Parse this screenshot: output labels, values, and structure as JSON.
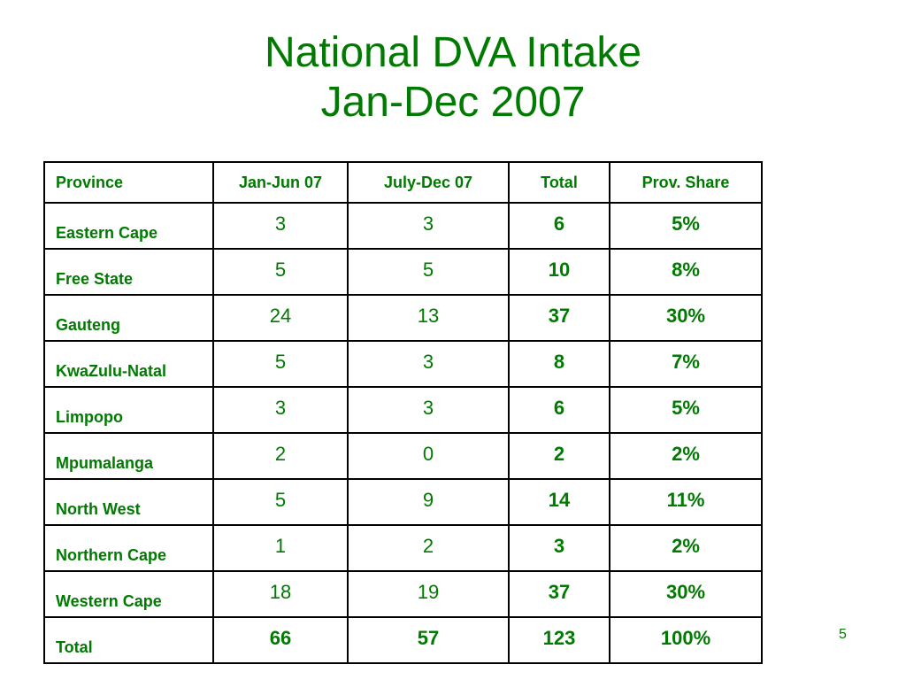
{
  "slide": {
    "title_line1": "National  DVA Intake",
    "title_line2": "Jan-Dec 2007",
    "page_number": "5",
    "text_color": "#007a00"
  },
  "table": {
    "headers": [
      "Province",
      "Jan-Jun 07",
      "July-Dec 07",
      "Total",
      "Prov. Share"
    ],
    "rows": [
      [
        "Eastern Cape",
        "3",
        "3",
        "6",
        "5%"
      ],
      [
        "Free State",
        "5",
        "5",
        "10",
        "8%"
      ],
      [
        "Gauteng",
        "24",
        "13",
        "37",
        "30%"
      ],
      [
        "KwaZulu-Natal",
        "5",
        "3",
        "8",
        "7%"
      ],
      [
        "Limpopo",
        "3",
        "3",
        "6",
        "5%"
      ],
      [
        "Mpumalanga",
        "2",
        "0",
        "2",
        "2%"
      ],
      [
        "North West",
        "5",
        "9",
        "14",
        "11%"
      ],
      [
        "Northern Cape",
        "1",
        "2",
        "3",
        "2%"
      ],
      [
        "Western Cape",
        "18",
        "19",
        "37",
        "30%"
      ],
      [
        "Total",
        "66",
        "57",
        "123",
        "100%"
      ]
    ]
  }
}
